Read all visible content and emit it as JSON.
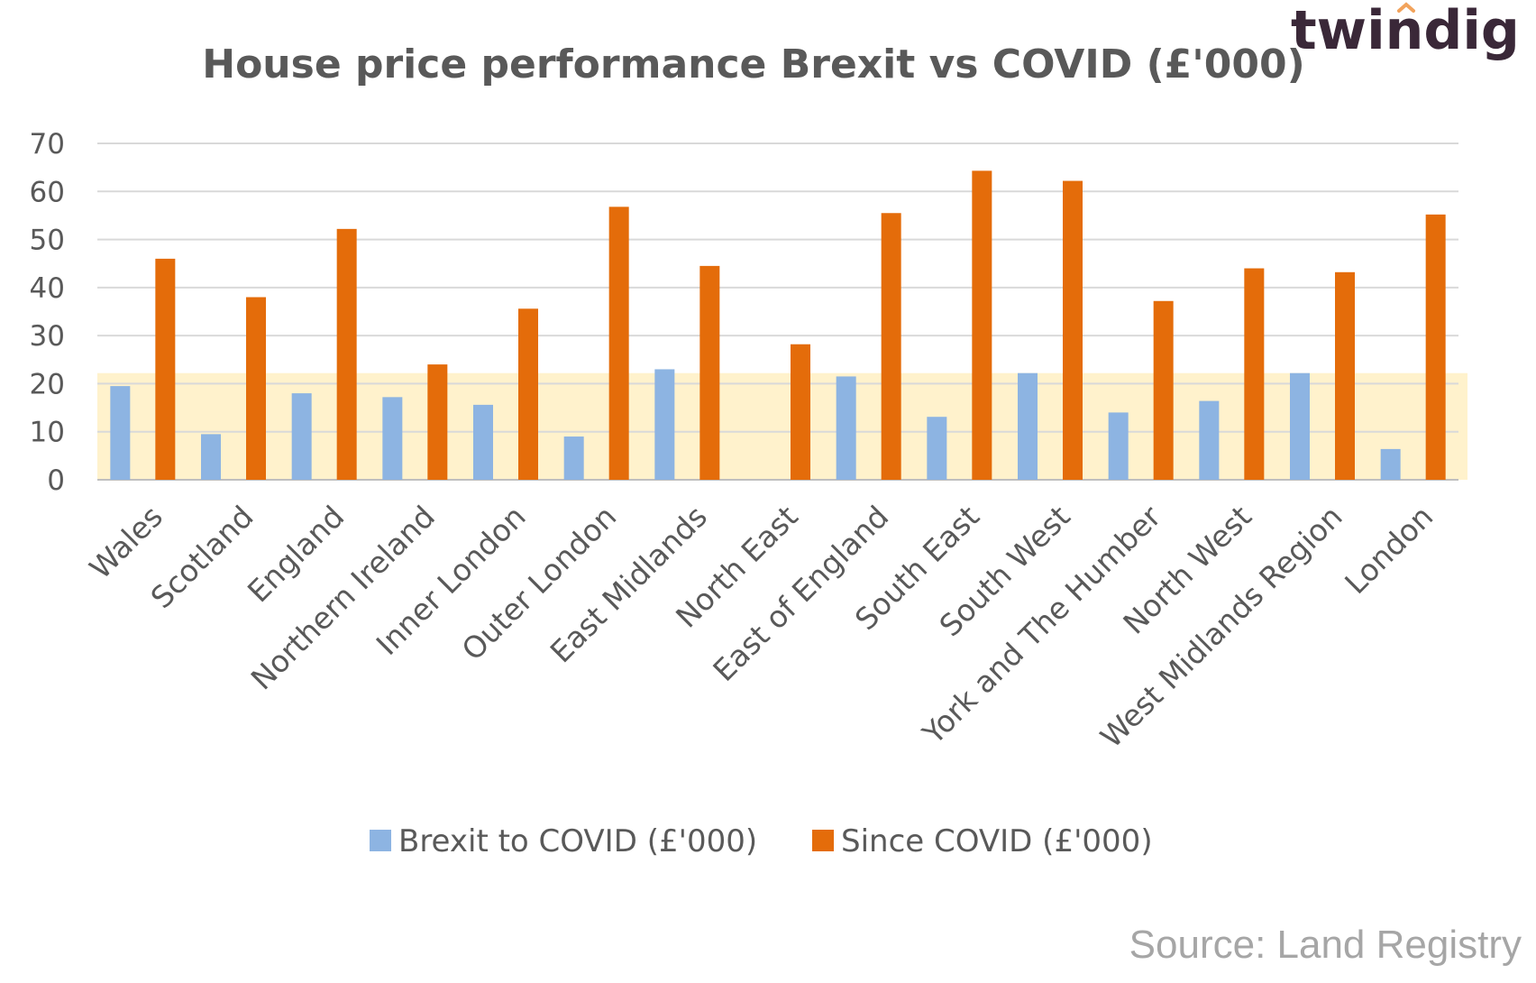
{
  "logo": {
    "text": "twindig",
    "accent_color": "#f2a35c"
  },
  "source": "Source: Land Registry",
  "colors": {
    "brexit": "#8db4e2",
    "covid": "#e46c0a",
    "highlight": "#fff2cc",
    "grid": "#d9d9d9",
    "text": "#595959"
  },
  "chart_data": {
    "type": "bar",
    "title": "House price performance Brexit vs COVID (£'000)",
    "xlabel": "",
    "ylabel": "",
    "ylim": [
      0,
      70
    ],
    "yticks": [
      0,
      10,
      20,
      30,
      40,
      50,
      60,
      70
    ],
    "grid": true,
    "legend": "bottom",
    "highlight_band": [
      0,
      22.2
    ],
    "categories": [
      "Wales",
      "Scotland",
      "England",
      "Northern Ireland",
      "Inner London",
      "Outer London",
      "East Midlands",
      "North East",
      "East of England",
      "South East",
      "South West",
      "York and The Humber",
      "North West",
      "West Midlands Region",
      "London"
    ],
    "series": [
      {
        "name": "Brexit to COVID (£'000)",
        "color": "#8db4e2",
        "values": [
          19.5,
          9.5,
          18,
          17.2,
          15.6,
          9,
          23,
          0,
          21.5,
          13.1,
          22.2,
          14,
          16.4,
          22.2,
          6.4
        ]
      },
      {
        "name": "Since COVID (£'000)",
        "color": "#e46c0a",
        "values": [
          46,
          38,
          52.2,
          24,
          35.6,
          56.8,
          44.5,
          28.2,
          55.5,
          64.3,
          62.2,
          37.2,
          44,
          43.2,
          55.2
        ]
      }
    ]
  }
}
